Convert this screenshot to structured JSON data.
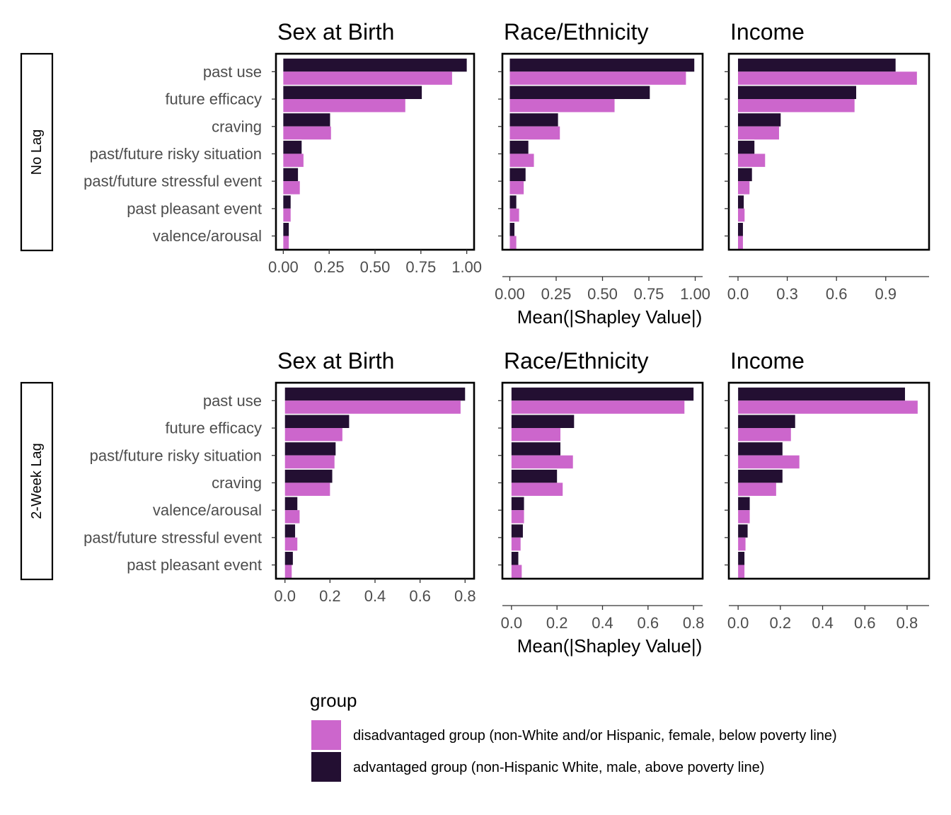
{
  "chart_data": {
    "type": "bar",
    "x_axis_title": "Mean(|Shapley Value|)",
    "legend": {
      "title": "group",
      "placement": "bottom",
      "entries": [
        {
          "key": "disadvantaged",
          "label": "disadvantaged group (non-White and/or Hispanic, female, below poverty line)",
          "color": "#CC66CC"
        },
        {
          "key": "advantaged",
          "label": "advantaged group (non-Hispanic White, male, above poverty line)",
          "color": "#230F32"
        }
      ]
    },
    "rows": [
      {
        "strip": "No Lag",
        "categories": [
          "past use",
          "future efficacy",
          "craving",
          "past/future risky situation",
          "past/future stressful event",
          "past pleasant event",
          "valence/arousal"
        ],
        "panels": [
          {
            "title": "Sex at Birth",
            "xlim": [
              -0.04,
              1.04
            ],
            "ticks": [
              0,
              0.25,
              0.5,
              0.75,
              1.0
            ],
            "tick_labels": [
              "0.00",
              "0.25",
              "0.50",
              "0.75",
              "1.00"
            ],
            "series": [
              {
                "name": "advantaged group (non-Hispanic White, male, above poverty line)",
                "values": [
                  1.0,
                  0.755,
                  0.255,
                  0.1,
                  0.08,
                  0.04,
                  0.03
                ]
              },
              {
                "name": "disadvantaged group (non-White and/or Hispanic, female, below poverty line)",
                "values": [
                  0.92,
                  0.665,
                  0.26,
                  0.11,
                  0.09,
                  0.04,
                  0.03
                ]
              }
            ]
          },
          {
            "title": "Race/Ethnicity",
            "xlim": [
              -0.04,
              1.04
            ],
            "ticks": [
              0,
              0.25,
              0.5,
              0.75,
              1.0
            ],
            "tick_labels": [
              "0.00",
              "0.25",
              "0.50",
              "0.75",
              "1.00"
            ],
            "series": [
              {
                "name": "advantaged group (non-Hispanic White, male, above poverty line)",
                "values": [
                  0.995,
                  0.755,
                  0.26,
                  0.1,
                  0.085,
                  0.035,
                  0.025
                ]
              },
              {
                "name": "disadvantaged group (non-White and/or Hispanic, female, below poverty line)",
                "values": [
                  0.95,
                  0.565,
                  0.27,
                  0.13,
                  0.075,
                  0.05,
                  0.035
                ]
              }
            ]
          },
          {
            "title": "Income",
            "xlim": [
              -0.056,
              1.164
            ],
            "ticks": [
              0,
              0.3,
              0.6,
              0.9
            ],
            "tick_labels": [
              "0.0",
              "0.3",
              "0.6",
              "0.9"
            ],
            "series": [
              {
                "name": "advantaged group (non-Hispanic White, male, above poverty line)",
                "values": [
                  0.96,
                  0.72,
                  0.26,
                  0.1,
                  0.085,
                  0.035,
                  0.03
                ]
              },
              {
                "name": "disadvantaged group (non-White and/or Hispanic, female, below poverty line)",
                "values": [
                  1.09,
                  0.71,
                  0.25,
                  0.165,
                  0.07,
                  0.04,
                  0.03
                ]
              }
            ]
          }
        ]
      },
      {
        "strip": "2-Week Lag",
        "categories": [
          "past use",
          "future efficacy",
          "past/future risky situation",
          "craving",
          "valence/arousal",
          "past/future stressful event",
          "past pleasant event"
        ],
        "panels": [
          {
            "title": "Sex at Birth",
            "xlim": [
              -0.04,
              0.84
            ],
            "ticks": [
              0,
              0.2,
              0.4,
              0.6,
              0.8
            ],
            "tick_labels": [
              "0.0",
              "0.2",
              "0.4",
              "0.6",
              "0.8"
            ],
            "series": [
              {
                "name": "advantaged group (non-Hispanic White, male, above poverty line)",
                "values": [
                  0.8,
                  0.285,
                  0.225,
                  0.21,
                  0.055,
                  0.045,
                  0.035
                ]
              },
              {
                "name": "disadvantaged group (non-White and/or Hispanic, female, below poverty line)",
                "values": [
                  0.78,
                  0.255,
                  0.22,
                  0.2,
                  0.065,
                  0.055,
                  0.03
                ]
              }
            ]
          },
          {
            "title": "Race/Ethnicity",
            "xlim": [
              -0.04,
              0.84
            ],
            "ticks": [
              0,
              0.2,
              0.4,
              0.6,
              0.8
            ],
            "tick_labels": [
              "0.0",
              "0.2",
              "0.4",
              "0.6",
              "0.8"
            ],
            "series": [
              {
                "name": "advantaged group (non-Hispanic White, male, above poverty line)",
                "values": [
                  0.8,
                  0.275,
                  0.215,
                  0.2,
                  0.055,
                  0.05,
                  0.03
                ]
              },
              {
                "name": "disadvantaged group (non-White and/or Hispanic, female, below poverty line)",
                "values": [
                  0.76,
                  0.215,
                  0.27,
                  0.225,
                  0.055,
                  0.04,
                  0.045
                ]
              }
            ]
          },
          {
            "title": "Income",
            "xlim": [
              -0.044,
              0.904
            ],
            "ticks": [
              0,
              0.2,
              0.4,
              0.6,
              0.8
            ],
            "tick_labels": [
              "0.0",
              "0.2",
              "0.4",
              "0.6",
              "0.8"
            ],
            "series": [
              {
                "name": "advantaged group (non-Hispanic White, male, above poverty line)",
                "values": [
                  0.79,
                  0.27,
                  0.21,
                  0.21,
                  0.055,
                  0.045,
                  0.03
                ]
              },
              {
                "name": "disadvantaged group (non-White and/or Hispanic, female, below poverty line)",
                "values": [
                  0.85,
                  0.25,
                  0.29,
                  0.18,
                  0.055,
                  0.035,
                  0.03
                ]
              }
            ]
          }
        ]
      }
    ]
  }
}
